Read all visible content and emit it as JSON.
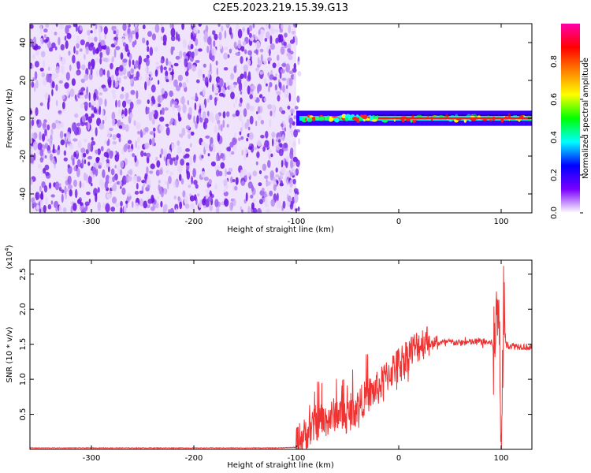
{
  "page_title": "C2E5.2023.219.15.39.G13",
  "chart_data": [
    {
      "type": "heatmap",
      "title": "C2E5.2023.219.15.39.G13",
      "xlabel": "Height of straight line (km)",
      "ylabel": "Frequency (Hz)",
      "xlim": [
        -360,
        130
      ],
      "ylim": [
        -50,
        50
      ],
      "x_ticks": [
        -300,
        -200,
        -100,
        0,
        100
      ],
      "y_ticks": [
        -40,
        -20,
        0,
        20,
        40
      ],
      "regions": [
        {
          "x_range": [
            -360,
            -100
          ],
          "description_level": "low",
          "spread_hz": [
            -50,
            50
          ]
        },
        {
          "x_range": [
            -100,
            130
          ],
          "center_hz": 0,
          "spread_hz": [
            -4,
            4
          ]
        }
      ],
      "colorbar": {
        "label": "Normalized spectral amplitude",
        "range": [
          0,
          1
        ],
        "ticks": [
          "0.0",
          "0.2",
          "0.4",
          "0.6",
          "0.8"
        ],
        "colors": [
          "#ffffff",
          "#7a00ff",
          "#0000ff",
          "#00ffff",
          "#00ff00",
          "#ffff00",
          "#ff8000",
          "#ff0000",
          "#ff00aa"
        ]
      },
      "grid": false
    },
    {
      "type": "line",
      "xlabel": "Height of straight line (km)",
      "ylabel": "SNR (10 * v/v)",
      "y_multiplier": "(x10",
      "y_multiplier_exp": "4",
      "y_multiplier_close": ")",
      "xlim": [
        -360,
        130
      ],
      "ylim": [
        0,
        2.7
      ],
      "x_ticks": [
        -300,
        -200,
        -100,
        0,
        100
      ],
      "y_ticks": [
        "0.5",
        "1.0",
        "1.5",
        "2.0",
        "2.5"
      ],
      "series": [
        {
          "color": "#ee3333",
          "x": [
            -360,
            -300,
            -200,
            -120,
            -100,
            -90,
            -80,
            -70,
            -60,
            -50,
            -40,
            -30,
            -20,
            -10,
            0,
            10,
            20,
            30,
            40,
            50,
            60,
            70,
            80,
            90,
            95,
            98,
            100,
            102,
            105,
            110,
            120,
            130
          ],
          "y": [
            0.02,
            0.02,
            0.02,
            0.02,
            0.03,
            0.15,
            0.3,
            0.35,
            0.45,
            0.4,
            0.55,
            0.7,
            0.8,
            1.0,
            1.15,
            1.3,
            1.42,
            1.5,
            1.52,
            1.53,
            1.52,
            1.53,
            1.54,
            1.52,
            1.5,
            2.2,
            0.2,
            1.9,
            1.48,
            1.48,
            1.47,
            1.45
          ]
        }
      ],
      "grid": false
    }
  ]
}
